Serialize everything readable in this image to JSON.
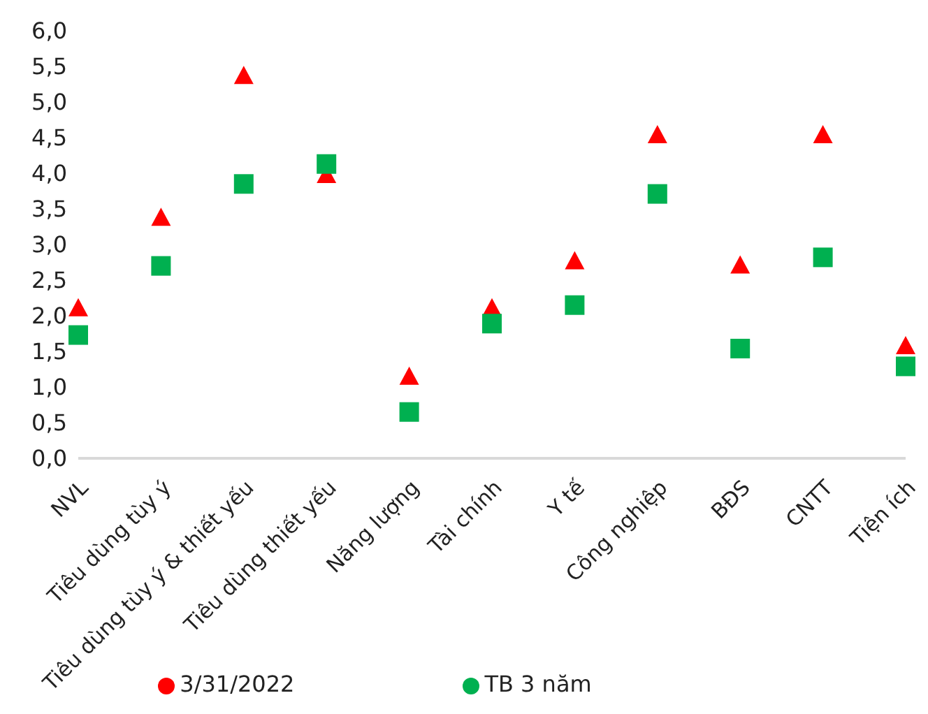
{
  "chart_data": {
    "type": "scatter",
    "categories": [
      "NVL",
      "Tiêu dùng tùy ý",
      "Tiêu dùng tùy ý & thiết yếu",
      "Tiêu dùng thiết yếu",
      "Năng lượng",
      "Tài chính",
      "Y tế",
      "Công nghiệp",
      "BĐS",
      "CNTT",
      "Tiện ích"
    ],
    "series": [
      {
        "name": "3/31/2022",
        "color": "#ff0000",
        "marker": "triangle",
        "values": [
          2.09,
          3.36,
          5.35,
          3.96,
          1.13,
          2.09,
          2.75,
          4.52,
          2.69,
          4.52,
          1.56
        ]
      },
      {
        "name": "TB 3 năm",
        "color": "#00b050",
        "marker": "square",
        "values": [
          1.73,
          2.7,
          3.85,
          4.13,
          0.65,
          1.89,
          2.15,
          3.71,
          1.54,
          2.82,
          1.29
        ]
      }
    ],
    "ylim": [
      0,
      6
    ],
    "yticks": [
      {
        "value": 0,
        "label": "0,0"
      },
      {
        "value": 0.5,
        "label": "0,5"
      },
      {
        "value": 1,
        "label": "1,0"
      },
      {
        "value": 1.5,
        "label": "1,5"
      },
      {
        "value": 2,
        "label": "2,0"
      },
      {
        "value": 2.5,
        "label": "2,5"
      },
      {
        "value": 3,
        "label": "3,0"
      },
      {
        "value": 3.5,
        "label": "3,5"
      },
      {
        "value": 4,
        "label": "4,0"
      },
      {
        "value": 4.5,
        "label": "4,5"
      },
      {
        "value": 5,
        "label": "5,0"
      },
      {
        "value": 5.5,
        "label": "5,5"
      },
      {
        "value": 6,
        "label": "6,0"
      }
    ],
    "grid": false,
    "legend": "bottom"
  }
}
